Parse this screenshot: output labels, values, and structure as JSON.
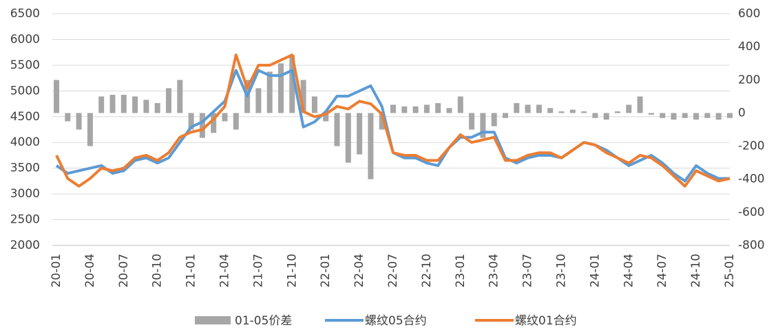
{
  "chart_data": {
    "type": "bar-line",
    "categories": [
      "20-01",
      null,
      null,
      "20-04",
      null,
      null,
      "20-07",
      null,
      null,
      "20-10",
      null,
      null,
      "21-01",
      null,
      null,
      "21-04",
      null,
      null,
      "21-07",
      null,
      null,
      "21-10",
      null,
      null,
      "22-01",
      null,
      null,
      "22-04",
      null,
      null,
      "22-07",
      null,
      null,
      "22-10",
      null,
      null,
      "23-01",
      null,
      null,
      "23-04",
      null,
      null,
      "23-07",
      null,
      null,
      "23-10",
      null,
      null,
      "24-01",
      null,
      null,
      "24-04",
      null,
      null,
      "24-07",
      null,
      null,
      "24-10",
      null,
      null,
      "25-01"
    ],
    "series": [
      {
        "name": "01-05价差",
        "type": "bar",
        "axis": "y2",
        "color": "#a6a6a6",
        "values": [
          200,
          -50,
          -100,
          -200,
          100,
          110,
          110,
          100,
          80,
          60,
          150,
          200,
          -100,
          -150,
          -120,
          -50,
          -100,
          200,
          150,
          250,
          300,
          350,
          200,
          100,
          -50,
          -200,
          -300,
          -250,
          -400,
          -100,
          50,
          40,
          40,
          50,
          60,
          30,
          100,
          -100,
          -150,
          -80,
          -30,
          60,
          50,
          50,
          30,
          10,
          20,
          10,
          -30,
          -40,
          10,
          50,
          100,
          -10,
          -30,
          -40,
          -30,
          -40,
          -30,
          -40,
          -30
        ]
      },
      {
        "name": "螺纹05合约",
        "type": "line",
        "color": "#5b9bd5",
        "values": [
          3550,
          3400,
          3450,
          3500,
          3550,
          3400,
          3450,
          3650,
          3700,
          3600,
          3700,
          4000,
          4300,
          4400,
          4600,
          4800,
          5400,
          4900,
          5400,
          5300,
          5300,
          5400,
          4300,
          4400,
          4600,
          4900,
          4900,
          5000,
          5100,
          4700,
          3800,
          3700,
          3700,
          3600,
          3550,
          3900,
          4100,
          4100,
          4200,
          4200,
          3700,
          3600,
          3700,
          3750,
          3750,
          3700,
          3850,
          4000,
          3950,
          3850,
          3700,
          3550,
          3650,
          3750,
          3600,
          3400,
          3250,
          3550,
          3400,
          3300,
          3300
        ]
      },
      {
        "name": "螺纹01合约",
        "type": "line",
        "color": "#ed7d31",
        "values": [
          3750,
          3300,
          3150,
          3300,
          3500,
          3450,
          3500,
          3700,
          3750,
          3650,
          3800,
          4100,
          4200,
          4250,
          4450,
          4700,
          5700,
          5050,
          5500,
          5500,
          5600,
          5700,
          4600,
          4500,
          4550,
          4700,
          4650,
          4800,
          4750,
          4550,
          3800,
          3750,
          3750,
          3650,
          3650,
          3900,
          4150,
          4000,
          4050,
          4100,
          3650,
          3650,
          3750,
          3800,
          3800,
          3700,
          3850,
          4000,
          3950,
          3800,
          3700,
          3600,
          3750,
          3700,
          3550,
          3350,
          3150,
          3450,
          3350,
          3250,
          3300
        ]
      }
    ],
    "ylim": [
      2000,
      6500
    ],
    "yticks": [
      2000,
      2500,
      3000,
      3500,
      4000,
      4500,
      5000,
      5500,
      6000,
      6500
    ],
    "y2lim": [
      -800,
      600
    ],
    "y2ticks": [
      -800,
      -600,
      -400,
      -200,
      0,
      200,
      400,
      600
    ],
    "grid": true,
    "legend": "bottom"
  }
}
